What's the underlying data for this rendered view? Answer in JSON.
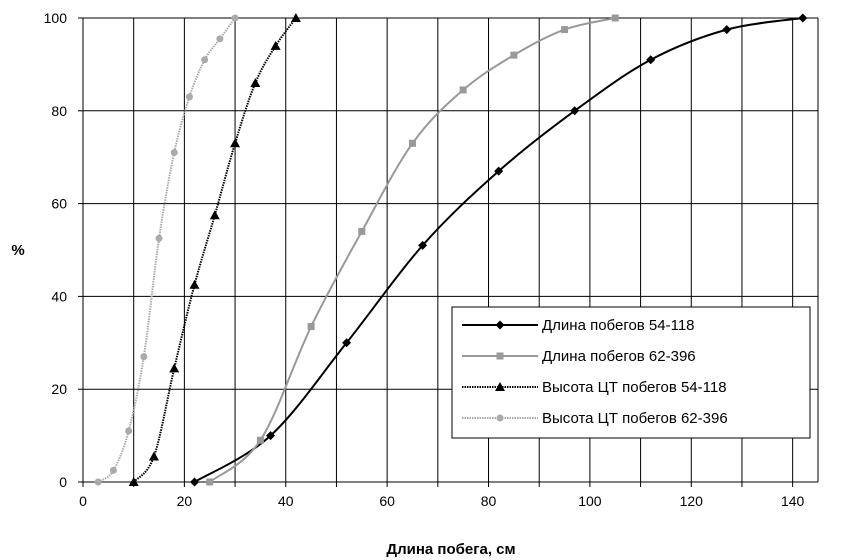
{
  "chart_data": {
    "type": "line",
    "title": "",
    "xlabel": "Длина побега, см",
    "ylabel": "%",
    "xlim": [
      0,
      145
    ],
    "ylim": [
      0,
      100
    ],
    "x_ticks": [
      "0",
      "20",
      "40",
      "60",
      "80",
      "100",
      "120",
      "140"
    ],
    "y_ticks": [
      "0",
      "20",
      "40",
      "60",
      "80",
      "100"
    ],
    "grid": "vertical-and-horizontal",
    "legend_position": "bottom-right",
    "series": [
      {
        "name": "Длина побегов 54-118",
        "color": "#000000",
        "marker": "diamond",
        "line_style": "solid",
        "points": [
          [
            22,
            0
          ],
          [
            37,
            10
          ],
          [
            52,
            30
          ],
          [
            67,
            51
          ],
          [
            82,
            67
          ],
          [
            97,
            80
          ],
          [
            112,
            91
          ],
          [
            127,
            97.5
          ],
          [
            142,
            100
          ]
        ]
      },
      {
        "name": "Длина побегов 62-396",
        "color": "#999999",
        "marker": "square",
        "line_style": "solid",
        "points": [
          [
            25,
            0
          ],
          [
            35,
            9
          ],
          [
            45,
            33.5
          ],
          [
            55,
            54
          ],
          [
            65,
            73
          ],
          [
            75,
            84.5
          ],
          [
            85,
            92
          ],
          [
            95,
            97.5
          ],
          [
            105,
            100
          ]
        ]
      },
      {
        "name": "Высота ЦТ побегов 54-118",
        "color": "#000000",
        "marker": "triangle",
        "line_style": "dotted",
        "points": [
          [
            10,
            0
          ],
          [
            14,
            5.5
          ],
          [
            18,
            24.5
          ],
          [
            22,
            42.5
          ],
          [
            26,
            57.5
          ],
          [
            30,
            73
          ],
          [
            34,
            86
          ],
          [
            38,
            94
          ],
          [
            42,
            100
          ]
        ]
      },
      {
        "name": "Высота ЦТ побегов 62-396",
        "color": "#aaaaaa",
        "marker": "circle",
        "line_style": "dotted",
        "points": [
          [
            3,
            0
          ],
          [
            6,
            2.5
          ],
          [
            9,
            11
          ],
          [
            12,
            27
          ],
          [
            15,
            52.5
          ],
          [
            18,
            71
          ],
          [
            21,
            83
          ],
          [
            24,
            91
          ],
          [
            27,
            95.5
          ],
          [
            30,
            100
          ]
        ]
      }
    ]
  }
}
